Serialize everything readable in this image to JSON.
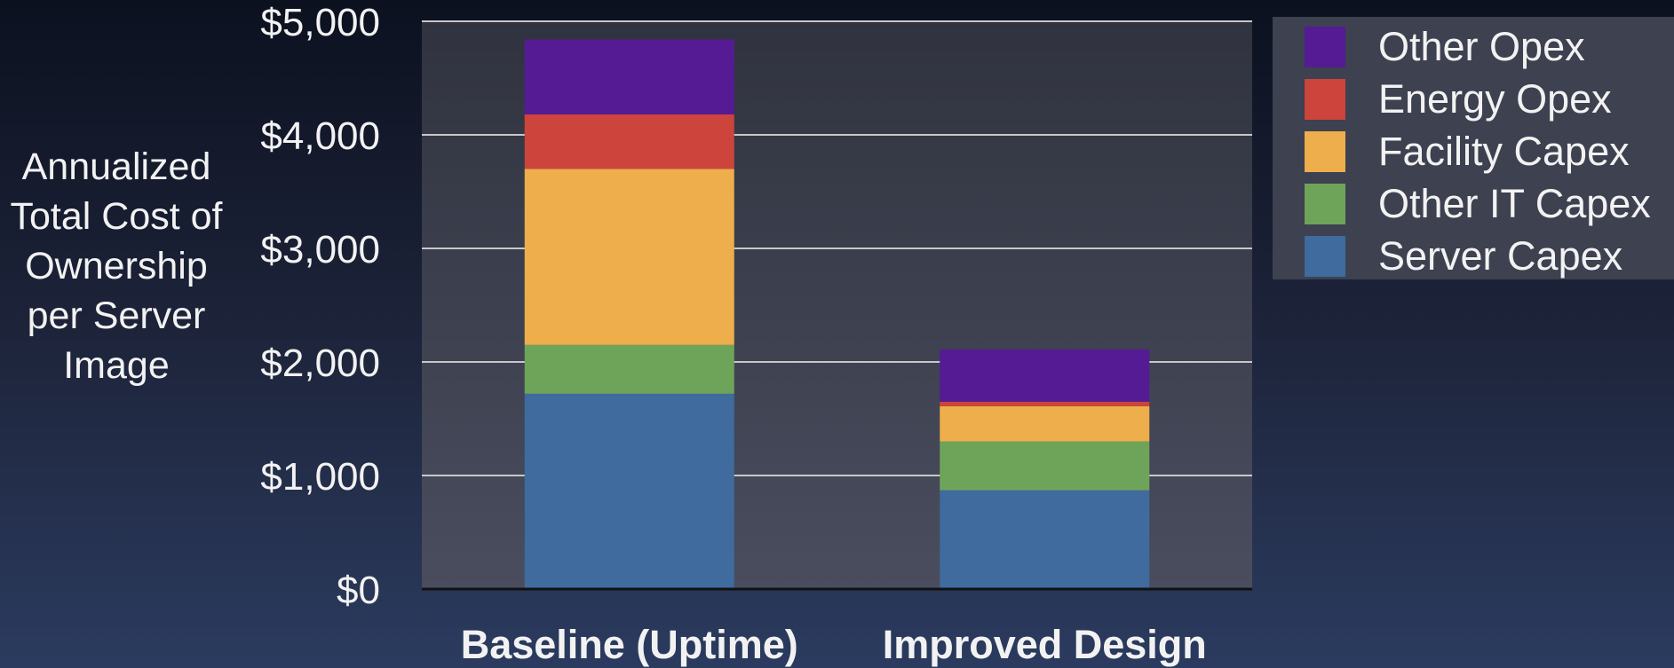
{
  "chart_data": {
    "type": "bar",
    "stacked": true,
    "categories": [
      "Baseline (Uptime)",
      "Improved Design"
    ],
    "series": [
      {
        "name": "Server Capex",
        "color": "#3f6b9e",
        "values": [
          1720,
          870
        ]
      },
      {
        "name": "Other IT Capex",
        "color": "#6ea45a",
        "values": [
          430,
          430
        ]
      },
      {
        "name": "Facility Capex",
        "color": "#edae4b",
        "values": [
          1550,
          310
        ]
      },
      {
        "name": "Energy Opex",
        "color": "#cc443b",
        "values": [
          480,
          40
        ]
      },
      {
        "name": "Other Opex",
        "color": "#551b94",
        "values": [
          660,
          460
        ]
      }
    ],
    "ylabel": "Annualized Total Cost of Ownership per Server Image",
    "ylim": [
      0,
      5000
    ],
    "yticks": [
      "$0",
      "$1,000",
      "$2,000",
      "$3,000",
      "$4,000",
      "$5,000"
    ],
    "grid": true,
    "legend_position": "top-right"
  }
}
